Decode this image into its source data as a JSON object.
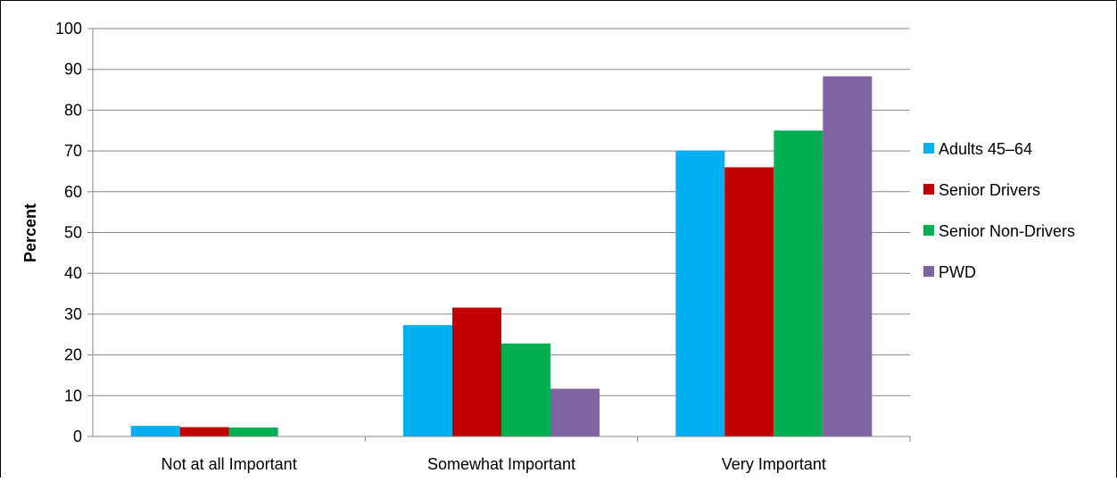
{
  "chart_data": {
    "type": "bar",
    "title": "",
    "xlabel": "",
    "ylabel": "Percent",
    "ylim": [
      0,
      100
    ],
    "yticks": [
      "0",
      "10",
      "20",
      "30",
      "40",
      "50",
      "60",
      "70",
      "80",
      "90",
      "100"
    ],
    "grid": true,
    "legend_position": "right",
    "categories": [
      "Not at all Important",
      "Somewhat Important",
      "Very Important"
    ],
    "series": [
      {
        "name": "Adults 45–64",
        "color": "#00B0F0",
        "values": [
          2.6,
          27.3,
          70.1
        ]
      },
      {
        "name": "Senior Drivers",
        "color": "#C00000",
        "values": [
          2.3,
          31.6,
          66.0
        ]
      },
      {
        "name": "Senior Non-Drivers",
        "color": "#00B050",
        "values": [
          2.2,
          22.8,
          75.0
        ]
      },
      {
        "name": "PWD",
        "color": "#8064A2",
        "values": [
          0,
          11.7,
          88.3
        ]
      }
    ]
  }
}
